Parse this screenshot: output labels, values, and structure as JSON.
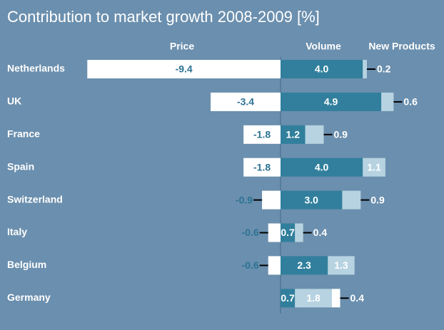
{
  "chart_data": {
    "type": "stacked-bar-horizontal",
    "title": "Contribution to market growth 2008-2009 [%]",
    "categories": [
      "Netherlands",
      "UK",
      "France",
      "Spain",
      "Switzerland",
      "Italy",
      "Belgium",
      "Germany"
    ],
    "series": [
      {
        "name": "Price",
        "color": "#ffffff",
        "values": [
          -9.4,
          -3.4,
          -1.8,
          -1.8,
          -0.9,
          -0.6,
          -0.6,
          0.4
        ],
        "value_labels": [
          "-9.4",
          "-3.4",
          "-1.8",
          "-1.8",
          "-0.9",
          "-0.6",
          "-0.6",
          "0.4"
        ]
      },
      {
        "name": "Volume",
        "color": "#317f9c",
        "values": [
          4.0,
          4.9,
          1.2,
          4.0,
          3.0,
          0.7,
          2.3,
          0.7
        ],
        "value_labels": [
          "4.0",
          "4.9",
          "1.2",
          "4.0",
          "3.0",
          "0.7",
          "2.3",
          "0.7"
        ]
      },
      {
        "name": "New Products",
        "color": "#b7d3e1",
        "values": [
          0.2,
          0.6,
          0.9,
          1.1,
          0.9,
          0.4,
          1.3,
          1.8
        ],
        "value_labels": [
          "0.2",
          "0.6",
          "0.9",
          "1.1",
          "0.9",
          "0.4",
          "1.3",
          "1.8"
        ]
      }
    ],
    "xlim": [
      -9.5,
      7.5
    ]
  }
}
